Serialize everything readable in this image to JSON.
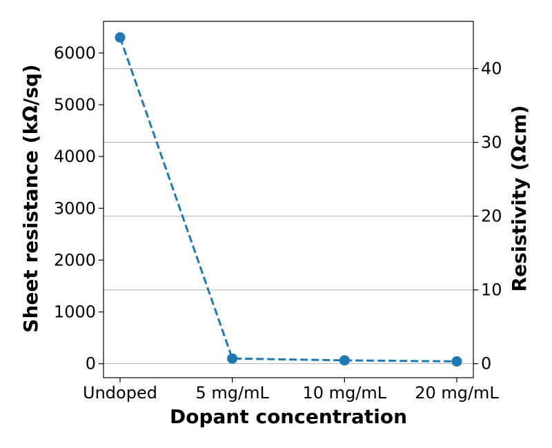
{
  "chart_data": {
    "type": "line",
    "xlabel": "Dopant concentration",
    "ylabel_left": "Sheet resistance (kΩ/sq)",
    "ylabel_right": "Resistivity (Ωcm)",
    "categories": [
      "Undoped",
      "5 mg/mL",
      "10 mg/mL",
      "20 mg/mL"
    ],
    "series": [
      {
        "values": [
          6300,
          100,
          65,
          45
        ],
        "axis": "left"
      }
    ],
    "left_axis": {
      "ylim": [
        -270,
        6610
      ],
      "ticks": [
        0,
        1000,
        2000,
        3000,
        4000,
        5000,
        6000
      ]
    },
    "right_axis": {
      "ylim": [
        -1.9,
        46.4
      ],
      "ticks": [
        0,
        10,
        20,
        30,
        40
      ]
    },
    "grid": "horizontal lines at right-axis ticks",
    "line_style": "dashed",
    "marker": "circle",
    "colors": {
      "series": "#1f77b4",
      "grid": "#b0b0b0"
    }
  }
}
